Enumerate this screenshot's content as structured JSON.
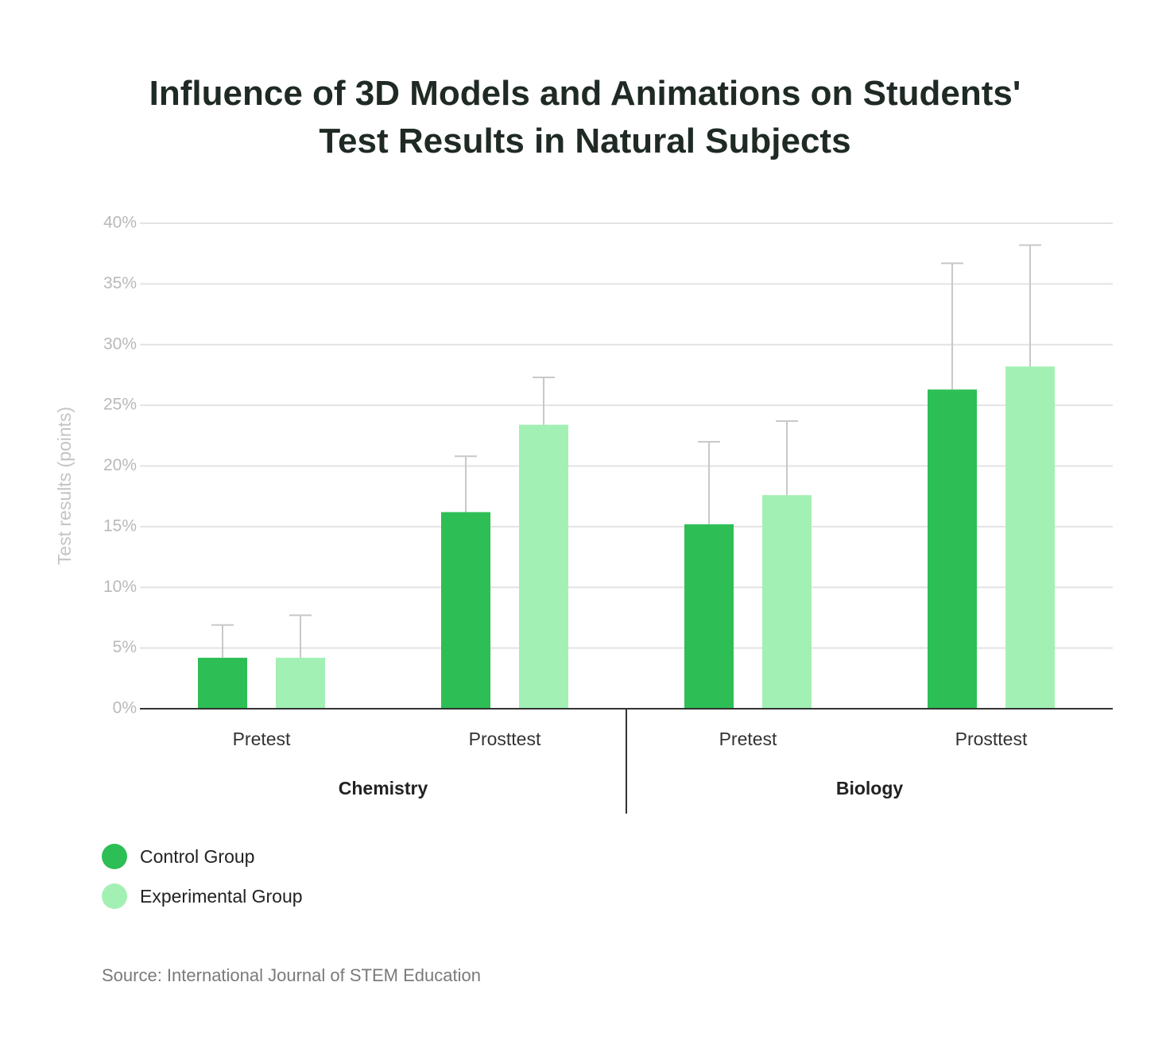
{
  "chart_data": {
    "type": "bar",
    "title_lines": [
      "Influence of 3D Models and Animations on Students'",
      "Test Results in Natural Subjects"
    ],
    "ylabel": "Test results (points)",
    "ylim": [
      0,
      40
    ],
    "yticks": [
      {
        "value": 0,
        "label": "0%"
      },
      {
        "value": 5,
        "label": "5%"
      },
      {
        "value": 10,
        "label": "10%"
      },
      {
        "value": 15,
        "label": "15%"
      },
      {
        "value": 20,
        "label": "20%"
      },
      {
        "value": 25,
        "label": "25%"
      },
      {
        "value": 30,
        "label": "30%"
      },
      {
        "value": 35,
        "label": "35%"
      },
      {
        "value": 40,
        "label": "40%"
      }
    ],
    "groups": [
      {
        "name": "Chemistry",
        "categories": [
          "Pretest",
          "Prosttest"
        ]
      },
      {
        "name": "Biology",
        "categories": [
          "Pretest",
          "Prosttest"
        ]
      }
    ],
    "series": [
      {
        "name": "Control Group",
        "color": "#2dbf55",
        "values": [
          4.2,
          16.2,
          15.2,
          26.3
        ],
        "error_upper": [
          6.9,
          20.8,
          22.0,
          36.7
        ]
      },
      {
        "name": "Experimental Group",
        "color": "#a3f0b5",
        "values": [
          4.2,
          23.4,
          17.6,
          28.2
        ],
        "error_upper": [
          7.7,
          27.3,
          23.7,
          38.2
        ]
      }
    ],
    "grid": true,
    "legend": "bottom-left"
  },
  "source": "Source: International Journal of STEM Education"
}
